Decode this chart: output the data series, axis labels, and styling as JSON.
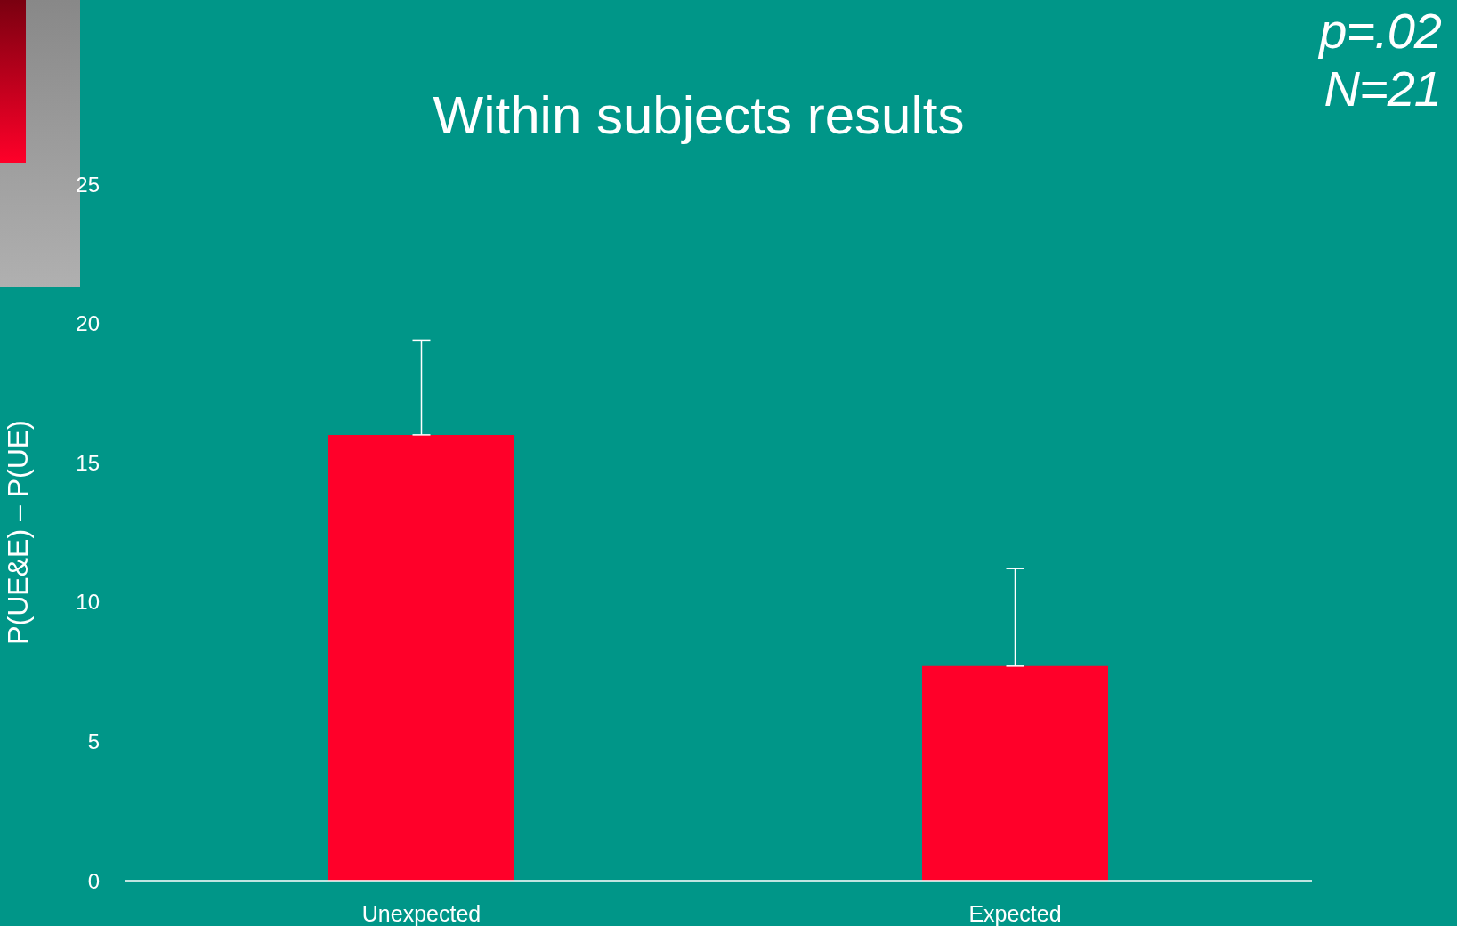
{
  "chart_data": {
    "type": "bar",
    "title": "Within subjects results",
    "ylabel": "P(UE&E) – P(UE)",
    "categories": [
      "Unexpected",
      "Expected"
    ],
    "values": [
      16,
      7.7
    ],
    "errors": [
      [
        16,
        19.4
      ],
      [
        7.7,
        11.2
      ]
    ],
    "color": "#ff0029",
    "ylim": [
      0,
      25
    ],
    "yticks": [
      0,
      5,
      10,
      15,
      20,
      25
    ],
    "grid": false,
    "legend": false,
    "annotations": [
      "p=.02",
      "N=21"
    ]
  }
}
